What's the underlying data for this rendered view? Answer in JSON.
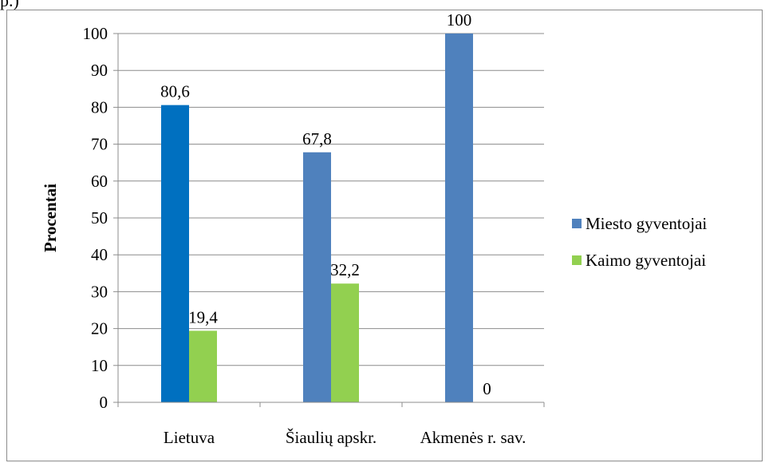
{
  "fragment_text": "p.)",
  "chart_data": {
    "type": "bar",
    "ylabel": "Procentai",
    "ylim": [
      0,
      100
    ],
    "y_ticks": [
      0,
      10,
      20,
      30,
      40,
      50,
      60,
      70,
      80,
      90,
      100
    ],
    "grid": true,
    "legend_position": "right",
    "categories": [
      "Lietuva",
      "Šiaulių apskr.",
      "Akmenės r. sav."
    ],
    "series": [
      {
        "name": "Miesto gyventojai",
        "values": [
          80.6,
          67.8,
          100
        ],
        "labels": [
          "80,6",
          "67,8",
          "100"
        ],
        "colors": [
          "#0070c0",
          "#4f81bd",
          "#4f81bd"
        ]
      },
      {
        "name": "Kaimo gyventojai",
        "values": [
          19.4,
          32.2,
          0
        ],
        "labels": [
          "19,4",
          "32,2",
          "0"
        ],
        "colors": [
          "#92d050",
          "#92d050",
          "#92d050"
        ]
      }
    ],
    "legend_colors": [
      "#4f81bd",
      "#92d050"
    ]
  }
}
